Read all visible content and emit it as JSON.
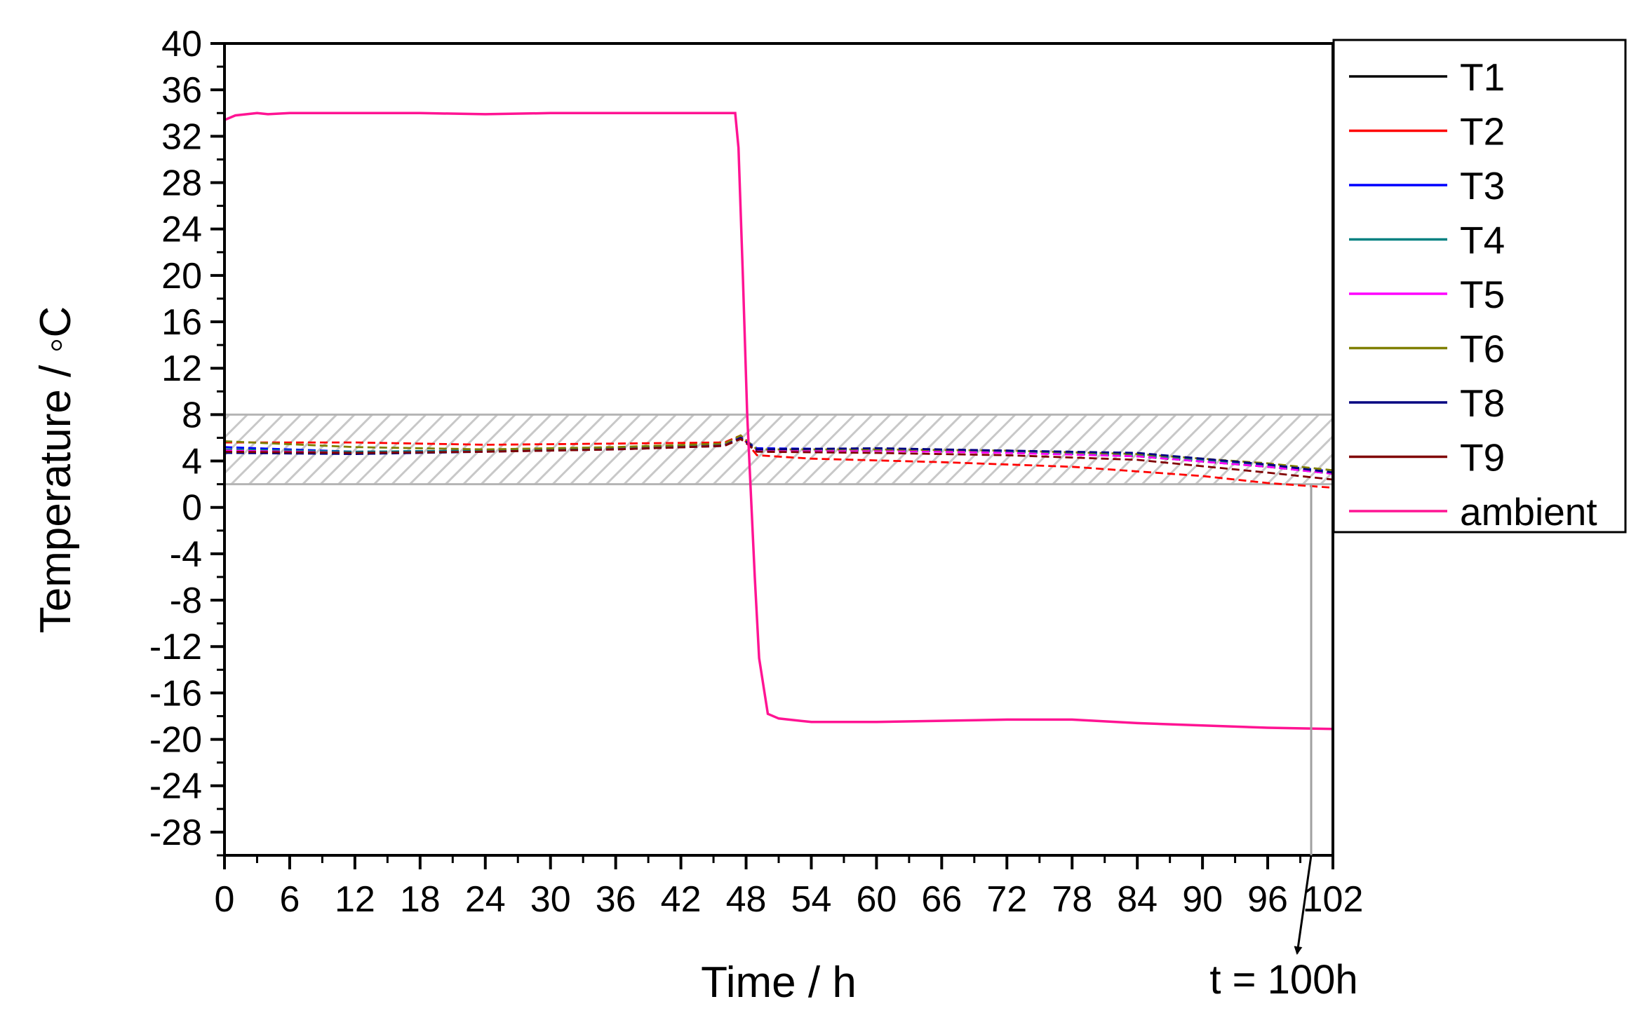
{
  "chart_data": {
    "type": "line",
    "xlabel": "Time / h",
    "ylabel": "Temperature / ◦C",
    "xlim": [
      0,
      102
    ],
    "ylim": [
      -30,
      40
    ],
    "x_ticks": [
      0,
      6,
      12,
      18,
      24,
      30,
      36,
      42,
      48,
      54,
      60,
      66,
      72,
      78,
      84,
      90,
      96,
      102
    ],
    "x_tick_labels": [
      "0",
      "6",
      "12",
      "18",
      "24",
      "30",
      "36",
      "42",
      "48",
      "54",
      "60",
      "66",
      "72",
      "78",
      "84",
      "90",
      "96",
      "102"
    ],
    "y_ticks": [
      40,
      36,
      32,
      28,
      24,
      20,
      16,
      12,
      8,
      4,
      0,
      -4,
      -8,
      -12,
      -16,
      -20,
      -24,
      -28
    ],
    "y_tick_labels": [
      "40",
      "36",
      "32",
      "28",
      "24",
      "20",
      "16",
      "12",
      "8",
      "4",
      "0",
      "-4",
      "-8",
      "-12",
      "-16",
      "-20",
      "-24",
      "-28"
    ],
    "grid": false,
    "legend_position": "outside-right-top",
    "band": {
      "y_from": 2,
      "y_to": 8,
      "pattern": "diagonal hatch",
      "color": "#c8c8c8"
    },
    "annotation": {
      "text": "t = 100h",
      "x": 100
    },
    "series": [
      {
        "name": "T1",
        "color": "#000000",
        "style": "dashed",
        "points": [
          [
            0,
            4.8
          ],
          [
            12,
            4.7
          ],
          [
            24,
            4.9
          ],
          [
            36,
            5.1
          ],
          [
            46,
            5.4
          ],
          [
            47.5,
            6.0
          ],
          [
            49,
            4.9
          ],
          [
            60,
            4.9
          ],
          [
            72,
            4.8
          ],
          [
            84,
            4.4
          ],
          [
            96,
            3.5
          ],
          [
            102,
            2.9
          ]
        ]
      },
      {
        "name": "T2",
        "color": "#ff0000",
        "style": "dashed",
        "points": [
          [
            0,
            5.6
          ],
          [
            12,
            5.6
          ],
          [
            24,
            5.4
          ],
          [
            36,
            5.5
          ],
          [
            46,
            5.6
          ],
          [
            47.5,
            6.2
          ],
          [
            49,
            4.5
          ],
          [
            54,
            4.2
          ],
          [
            66,
            3.9
          ],
          [
            78,
            3.5
          ],
          [
            90,
            2.7
          ],
          [
            96,
            2.1
          ],
          [
            102,
            1.7
          ]
        ]
      },
      {
        "name": "T3",
        "color": "#0000ff",
        "style": "dashed",
        "points": [
          [
            0,
            5.2
          ],
          [
            12,
            4.8
          ],
          [
            24,
            4.9
          ],
          [
            36,
            5.1
          ],
          [
            46,
            5.4
          ],
          [
            47.5,
            6.1
          ],
          [
            49,
            5.1
          ],
          [
            60,
            5.0
          ],
          [
            72,
            4.9
          ],
          [
            84,
            4.6
          ],
          [
            96,
            3.7
          ],
          [
            102,
            3.1
          ]
        ]
      },
      {
        "name": "T4",
        "color": "#008080",
        "style": "dashed",
        "points": [
          [
            0,
            5.0
          ],
          [
            12,
            4.8
          ],
          [
            24,
            4.9
          ],
          [
            36,
            5.1
          ],
          [
            46,
            5.3
          ],
          [
            47.5,
            6.0
          ],
          [
            49,
            5.0
          ],
          [
            60,
            5.0
          ],
          [
            72,
            4.8
          ],
          [
            84,
            4.5
          ],
          [
            96,
            3.6
          ],
          [
            102,
            3.0
          ]
        ]
      },
      {
        "name": "T5",
        "color": "#ff00ff",
        "style": "dashed",
        "points": [
          [
            0,
            4.9
          ],
          [
            12,
            4.7
          ],
          [
            24,
            4.8
          ],
          [
            36,
            5.0
          ],
          [
            46,
            5.3
          ],
          [
            47.5,
            6.0
          ],
          [
            49,
            4.9
          ],
          [
            60,
            4.9
          ],
          [
            72,
            4.7
          ],
          [
            84,
            4.4
          ],
          [
            96,
            3.5
          ],
          [
            102,
            2.9
          ]
        ]
      },
      {
        "name": "T6",
        "color": "#808000",
        "style": "dashed",
        "points": [
          [
            0,
            5.7
          ],
          [
            12,
            5.2
          ],
          [
            24,
            5.0
          ],
          [
            36,
            5.2
          ],
          [
            46,
            5.5
          ],
          [
            47.5,
            6.2
          ],
          [
            49,
            5.0
          ],
          [
            60,
            5.0
          ],
          [
            72,
            4.9
          ],
          [
            84,
            4.6
          ],
          [
            96,
            3.8
          ],
          [
            102,
            3.2
          ]
        ]
      },
      {
        "name": "T8",
        "color": "#000080",
        "style": "dashed",
        "points": [
          [
            0,
            4.7
          ],
          [
            12,
            4.6
          ],
          [
            24,
            4.8
          ],
          [
            36,
            5.0
          ],
          [
            46,
            5.3
          ],
          [
            47.5,
            6.0
          ],
          [
            49,
            5.0
          ],
          [
            60,
            5.1
          ],
          [
            72,
            4.9
          ],
          [
            84,
            4.7
          ],
          [
            96,
            3.7
          ],
          [
            102,
            3.0
          ]
        ]
      },
      {
        "name": "T9",
        "color": "#800000",
        "style": "dashed",
        "points": [
          [
            0,
            4.8
          ],
          [
            12,
            4.7
          ],
          [
            24,
            4.8
          ],
          [
            36,
            5.0
          ],
          [
            46,
            5.3
          ],
          [
            47.5,
            5.9
          ],
          [
            49,
            4.8
          ],
          [
            60,
            4.7
          ],
          [
            72,
            4.5
          ],
          [
            84,
            4.1
          ],
          [
            96,
            3.0
          ],
          [
            102,
            2.4
          ]
        ]
      },
      {
        "name": "ambient",
        "color": "#ff1493",
        "style": "solid",
        "points": [
          [
            0,
            33.4
          ],
          [
            1,
            33.8
          ],
          [
            3,
            34.0
          ],
          [
            4,
            33.9
          ],
          [
            6,
            34.0
          ],
          [
            12,
            34.0
          ],
          [
            18,
            34.0
          ],
          [
            24,
            33.9
          ],
          [
            30,
            34.0
          ],
          [
            36,
            34.0
          ],
          [
            42,
            34.0
          ],
          [
            47,
            34.0
          ],
          [
            47.3,
            31
          ],
          [
            47.7,
            20
          ],
          [
            48.1,
            8
          ],
          [
            48.4,
            2
          ],
          [
            48.8,
            -6
          ],
          [
            49.2,
            -13
          ],
          [
            50,
            -17.8
          ],
          [
            51,
            -18.2
          ],
          [
            54,
            -18.5
          ],
          [
            60,
            -18.5
          ],
          [
            66,
            -18.4
          ],
          [
            72,
            -18.3
          ],
          [
            78,
            -18.3
          ],
          [
            84,
            -18.6
          ],
          [
            90,
            -18.8
          ],
          [
            96,
            -19.0
          ],
          [
            102,
            -19.1
          ]
        ]
      }
    ]
  }
}
